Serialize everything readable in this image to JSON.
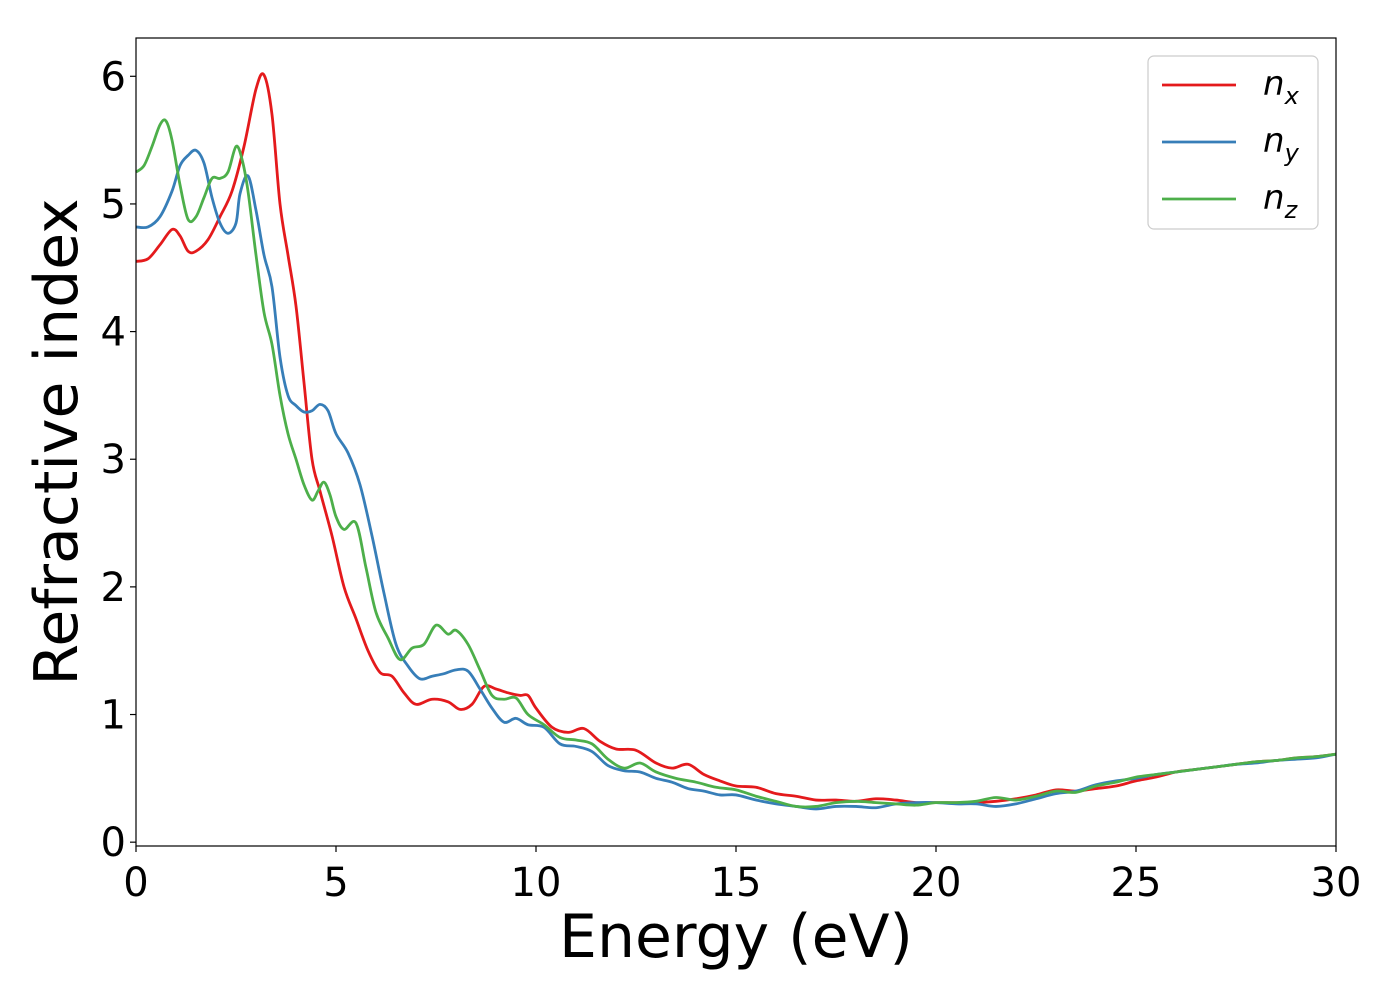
{
  "chart_data": {
    "type": "line",
    "title": "",
    "xlabel": "Energy (eV)",
    "ylabel": "Refractive index",
    "xlim": [
      0,
      30
    ],
    "ylim": [
      -0.03,
      6.3
    ],
    "xticks": [
      0,
      5,
      10,
      15,
      20,
      25,
      30
    ],
    "xtick_labels": [
      "0",
      "5",
      "10",
      "15",
      "20",
      "25",
      "30"
    ],
    "yticks": [
      0,
      1,
      2,
      3,
      4,
      5,
      6
    ],
    "ytick_labels": [
      "0",
      "1",
      "2",
      "3",
      "4",
      "5",
      "6"
    ],
    "grid": false,
    "legend_position": "top-right",
    "series": [
      {
        "name": "n",
        "subscript": "x",
        "color": "#e41a1c",
        "points": [
          [
            0,
            4.55
          ],
          [
            0.3,
            4.57
          ],
          [
            0.6,
            4.68
          ],
          [
            0.9,
            4.8
          ],
          [
            1.1,
            4.75
          ],
          [
            1.3,
            4.63
          ],
          [
            1.5,
            4.63
          ],
          [
            1.8,
            4.72
          ],
          [
            2.1,
            4.9
          ],
          [
            2.4,
            5.1
          ],
          [
            2.7,
            5.45
          ],
          [
            3.0,
            5.9
          ],
          [
            3.2,
            6.01
          ],
          [
            3.4,
            5.7
          ],
          [
            3.6,
            5.0
          ],
          [
            3.8,
            4.6
          ],
          [
            4.0,
            4.2
          ],
          [
            4.2,
            3.6
          ],
          [
            4.4,
            3.0
          ],
          [
            4.6,
            2.75
          ],
          [
            4.9,
            2.4
          ],
          [
            5.2,
            2.0
          ],
          [
            5.5,
            1.75
          ],
          [
            5.8,
            1.5
          ],
          [
            6.1,
            1.33
          ],
          [
            6.4,
            1.3
          ],
          [
            6.7,
            1.17
          ],
          [
            7.0,
            1.08
          ],
          [
            7.4,
            1.12
          ],
          [
            7.8,
            1.1
          ],
          [
            8.1,
            1.04
          ],
          [
            8.4,
            1.08
          ],
          [
            8.7,
            1.22
          ],
          [
            9.0,
            1.2
          ],
          [
            9.3,
            1.17
          ],
          [
            9.6,
            1.15
          ],
          [
            9.8,
            1.15
          ],
          [
            10.0,
            1.05
          ],
          [
            10.4,
            0.9
          ],
          [
            10.8,
            0.86
          ],
          [
            11.2,
            0.89
          ],
          [
            11.6,
            0.79
          ],
          [
            12.0,
            0.73
          ],
          [
            12.5,
            0.72
          ],
          [
            13.0,
            0.62
          ],
          [
            13.4,
            0.58
          ],
          [
            13.8,
            0.61
          ],
          [
            14.2,
            0.53
          ],
          [
            14.6,
            0.48
          ],
          [
            15.0,
            0.44
          ],
          [
            15.5,
            0.43
          ],
          [
            16.0,
            0.38
          ],
          [
            16.5,
            0.36
          ],
          [
            17.0,
            0.33
          ],
          [
            17.5,
            0.33
          ],
          [
            18.0,
            0.32
          ],
          [
            18.5,
            0.34
          ],
          [
            19.0,
            0.33
          ],
          [
            19.5,
            0.31
          ],
          [
            20.0,
            0.31
          ],
          [
            20.5,
            0.31
          ],
          [
            21.0,
            0.31
          ],
          [
            21.5,
            0.32
          ],
          [
            22.0,
            0.34
          ],
          [
            22.5,
            0.37
          ],
          [
            23.0,
            0.41
          ],
          [
            23.5,
            0.4
          ],
          [
            24.0,
            0.42
          ],
          [
            24.5,
            0.44
          ],
          [
            25.0,
            0.48
          ],
          [
            25.5,
            0.51
          ],
          [
            26.0,
            0.55
          ],
          [
            26.5,
            0.57
          ],
          [
            27.0,
            0.59
          ],
          [
            27.5,
            0.61
          ],
          [
            28.0,
            0.63
          ],
          [
            28.5,
            0.64
          ],
          [
            29.0,
            0.66
          ],
          [
            29.5,
            0.67
          ],
          [
            30.0,
            0.69
          ]
        ]
      },
      {
        "name": "n",
        "subscript": "y",
        "color": "#377eb8",
        "points": [
          [
            0,
            4.82
          ],
          [
            0.3,
            4.82
          ],
          [
            0.6,
            4.9
          ],
          [
            0.9,
            5.1
          ],
          [
            1.1,
            5.3
          ],
          [
            1.3,
            5.38
          ],
          [
            1.5,
            5.42
          ],
          [
            1.7,
            5.32
          ],
          [
            1.9,
            5.05
          ],
          [
            2.1,
            4.85
          ],
          [
            2.3,
            4.77
          ],
          [
            2.5,
            4.85
          ],
          [
            2.6,
            5.08
          ],
          [
            2.8,
            5.22
          ],
          [
            3.0,
            4.95
          ],
          [
            3.2,
            4.6
          ],
          [
            3.4,
            4.35
          ],
          [
            3.6,
            3.8
          ],
          [
            3.8,
            3.5
          ],
          [
            4.0,
            3.42
          ],
          [
            4.2,
            3.37
          ],
          [
            4.4,
            3.38
          ],
          [
            4.6,
            3.43
          ],
          [
            4.8,
            3.38
          ],
          [
            5.0,
            3.2
          ],
          [
            5.3,
            3.05
          ],
          [
            5.6,
            2.8
          ],
          [
            5.9,
            2.4
          ],
          [
            6.2,
            1.95
          ],
          [
            6.5,
            1.55
          ],
          [
            6.8,
            1.38
          ],
          [
            7.1,
            1.28
          ],
          [
            7.4,
            1.3
          ],
          [
            7.7,
            1.32
          ],
          [
            8.0,
            1.35
          ],
          [
            8.3,
            1.34
          ],
          [
            8.6,
            1.2
          ],
          [
            8.9,
            1.05
          ],
          [
            9.2,
            0.94
          ],
          [
            9.5,
            0.97
          ],
          [
            9.8,
            0.92
          ],
          [
            10.2,
            0.9
          ],
          [
            10.6,
            0.77
          ],
          [
            11.0,
            0.75
          ],
          [
            11.4,
            0.71
          ],
          [
            11.8,
            0.6
          ],
          [
            12.2,
            0.56
          ],
          [
            12.6,
            0.55
          ],
          [
            13.0,
            0.5
          ],
          [
            13.4,
            0.47
          ],
          [
            13.8,
            0.42
          ],
          [
            14.2,
            0.4
          ],
          [
            14.6,
            0.37
          ],
          [
            15.0,
            0.37
          ],
          [
            15.5,
            0.33
          ],
          [
            16.0,
            0.3
          ],
          [
            16.5,
            0.28
          ],
          [
            17.0,
            0.26
          ],
          [
            17.5,
            0.28
          ],
          [
            18.0,
            0.28
          ],
          [
            18.5,
            0.27
          ],
          [
            19.0,
            0.3
          ],
          [
            19.5,
            0.31
          ],
          [
            20.0,
            0.31
          ],
          [
            20.5,
            0.3
          ],
          [
            21.0,
            0.3
          ],
          [
            21.5,
            0.28
          ],
          [
            22.0,
            0.3
          ],
          [
            22.5,
            0.34
          ],
          [
            23.0,
            0.38
          ],
          [
            23.5,
            0.4
          ],
          [
            24.0,
            0.45
          ],
          [
            24.5,
            0.48
          ],
          [
            25.0,
            0.5
          ],
          [
            25.5,
            0.53
          ],
          [
            26.0,
            0.55
          ],
          [
            26.5,
            0.57
          ],
          [
            27.0,
            0.59
          ],
          [
            27.5,
            0.61
          ],
          [
            28.0,
            0.62
          ],
          [
            28.5,
            0.64
          ],
          [
            29.0,
            0.65
          ],
          [
            29.5,
            0.66
          ],
          [
            30.0,
            0.69
          ]
        ]
      },
      {
        "name": "n",
        "subscript": "z",
        "color": "#4daf4a",
        "points": [
          [
            0,
            5.25
          ],
          [
            0.2,
            5.3
          ],
          [
            0.4,
            5.45
          ],
          [
            0.6,
            5.62
          ],
          [
            0.75,
            5.65
          ],
          [
            0.9,
            5.5
          ],
          [
            1.1,
            5.15
          ],
          [
            1.3,
            4.88
          ],
          [
            1.5,
            4.9
          ],
          [
            1.7,
            5.05
          ],
          [
            1.9,
            5.2
          ],
          [
            2.1,
            5.2
          ],
          [
            2.3,
            5.25
          ],
          [
            2.5,
            5.45
          ],
          [
            2.65,
            5.35
          ],
          [
            2.8,
            5.1
          ],
          [
            3.0,
            4.6
          ],
          [
            3.2,
            4.15
          ],
          [
            3.4,
            3.9
          ],
          [
            3.6,
            3.5
          ],
          [
            3.8,
            3.2
          ],
          [
            4.0,
            3.0
          ],
          [
            4.2,
            2.8
          ],
          [
            4.4,
            2.68
          ],
          [
            4.55,
            2.75
          ],
          [
            4.7,
            2.82
          ],
          [
            4.85,
            2.72
          ],
          [
            5.0,
            2.55
          ],
          [
            5.2,
            2.45
          ],
          [
            5.5,
            2.5
          ],
          [
            5.75,
            2.15
          ],
          [
            6.0,
            1.8
          ],
          [
            6.3,
            1.6
          ],
          [
            6.6,
            1.43
          ],
          [
            6.9,
            1.52
          ],
          [
            7.2,
            1.55
          ],
          [
            7.5,
            1.7
          ],
          [
            7.8,
            1.63
          ],
          [
            8.0,
            1.66
          ],
          [
            8.3,
            1.55
          ],
          [
            8.6,
            1.35
          ],
          [
            8.9,
            1.15
          ],
          [
            9.2,
            1.12
          ],
          [
            9.5,
            1.13
          ],
          [
            9.8,
            1.0
          ],
          [
            10.2,
            0.92
          ],
          [
            10.6,
            0.82
          ],
          [
            11.0,
            0.8
          ],
          [
            11.4,
            0.77
          ],
          [
            11.8,
            0.65
          ],
          [
            12.2,
            0.58
          ],
          [
            12.6,
            0.62
          ],
          [
            13.0,
            0.55
          ],
          [
            13.5,
            0.5
          ],
          [
            14.0,
            0.47
          ],
          [
            14.5,
            0.43
          ],
          [
            15.0,
            0.41
          ],
          [
            15.5,
            0.36
          ],
          [
            16.0,
            0.32
          ],
          [
            16.5,
            0.28
          ],
          [
            17.0,
            0.28
          ],
          [
            17.5,
            0.31
          ],
          [
            18.0,
            0.32
          ],
          [
            18.5,
            0.31
          ],
          [
            19.0,
            0.3
          ],
          [
            19.5,
            0.29
          ],
          [
            20.0,
            0.31
          ],
          [
            20.5,
            0.31
          ],
          [
            21.0,
            0.32
          ],
          [
            21.5,
            0.35
          ],
          [
            22.0,
            0.33
          ],
          [
            22.5,
            0.36
          ],
          [
            23.0,
            0.4
          ],
          [
            23.5,
            0.39
          ],
          [
            24.0,
            0.44
          ],
          [
            24.5,
            0.47
          ],
          [
            25.0,
            0.51
          ],
          [
            25.5,
            0.53
          ],
          [
            26.0,
            0.55
          ],
          [
            26.5,
            0.57
          ],
          [
            27.0,
            0.59
          ],
          [
            27.5,
            0.61
          ],
          [
            28.0,
            0.63
          ],
          [
            28.5,
            0.64
          ],
          [
            29.0,
            0.66
          ],
          [
            29.5,
            0.67
          ],
          [
            30.0,
            0.69
          ]
        ]
      }
    ]
  }
}
